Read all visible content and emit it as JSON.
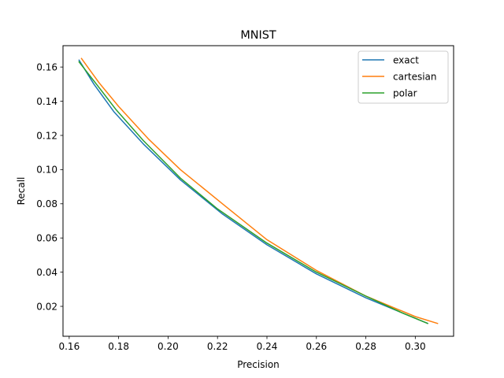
{
  "chart_data": {
    "type": "line",
    "title": "MNIST",
    "xlabel": "Precision",
    "ylabel": "Recall",
    "xlim": [
      0.1575,
      0.3155
    ],
    "ylim": [
      0.0025,
      0.1725
    ],
    "xticks": [
      0.16,
      0.18,
      0.2,
      0.22,
      0.24,
      0.26,
      0.28,
      0.3
    ],
    "xtick_labels": [
      "0.16",
      "0.18",
      "0.20",
      "0.22",
      "0.24",
      "0.26",
      "0.28",
      "0.30"
    ],
    "yticks": [
      0.02,
      0.04,
      0.06,
      0.08,
      0.1,
      0.12,
      0.14,
      0.16
    ],
    "ytick_labels": [
      "0.02",
      "0.04",
      "0.06",
      "0.08",
      "0.10",
      "0.12",
      "0.14",
      "0.16"
    ],
    "grid": false,
    "legend_position": "top-right",
    "series": [
      {
        "name": "exact",
        "color": "#1f77b4",
        "x": [
          0.164,
          0.17,
          0.178,
          0.19,
          0.205,
          0.222,
          0.24,
          0.26,
          0.28,
          0.295,
          0.305
        ],
        "y": [
          0.164,
          0.15,
          0.134,
          0.115,
          0.094,
          0.074,
          0.056,
          0.039,
          0.025,
          0.016,
          0.01
        ]
      },
      {
        "name": "cartesian",
        "color": "#ff7f0e",
        "x": [
          0.165,
          0.172,
          0.18,
          0.192,
          0.205,
          0.222,
          0.24,
          0.26,
          0.28,
          0.3,
          0.309
        ],
        "y": [
          0.165,
          0.151,
          0.137,
          0.118,
          0.1,
          0.08,
          0.059,
          0.041,
          0.026,
          0.014,
          0.01
        ]
      },
      {
        "name": "polar",
        "color": "#2ca02c",
        "x": [
          0.164,
          0.171,
          0.179,
          0.19,
          0.205,
          0.22,
          0.24,
          0.26,
          0.28,
          0.295,
          0.305
        ],
        "y": [
          0.163,
          0.15,
          0.135,
          0.117,
          0.095,
          0.077,
          0.057,
          0.04,
          0.026,
          0.016,
          0.01
        ]
      }
    ]
  }
}
